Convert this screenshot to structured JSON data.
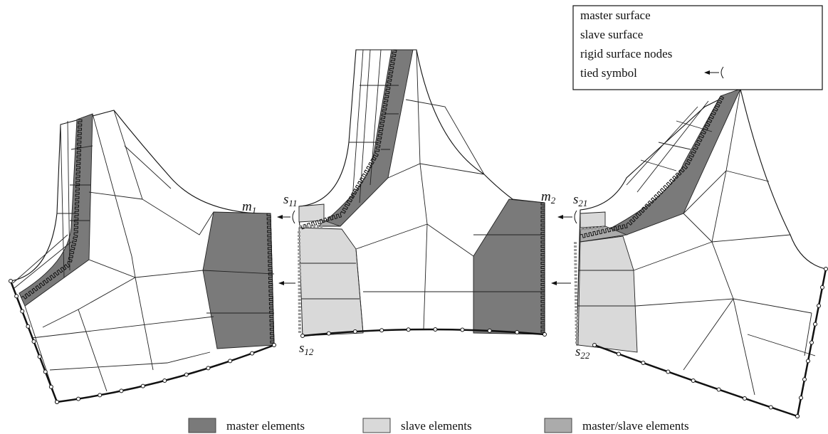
{
  "legend": {
    "items": [
      "master surface",
      "slave surface",
      "rigid surface nodes",
      "tied symbol"
    ]
  },
  "labels": [
    {
      "main": "m",
      "sub": "1"
    },
    {
      "main": "s",
      "sub": "11"
    },
    {
      "main": "s",
      "sub": "12"
    },
    {
      "main": "m",
      "sub": "2"
    },
    {
      "main": "s",
      "sub": "21"
    },
    {
      "main": "s",
      "sub": "22"
    }
  ],
  "element_legend": [
    "master elements",
    "slave elements",
    "master/slave elements"
  ]
}
